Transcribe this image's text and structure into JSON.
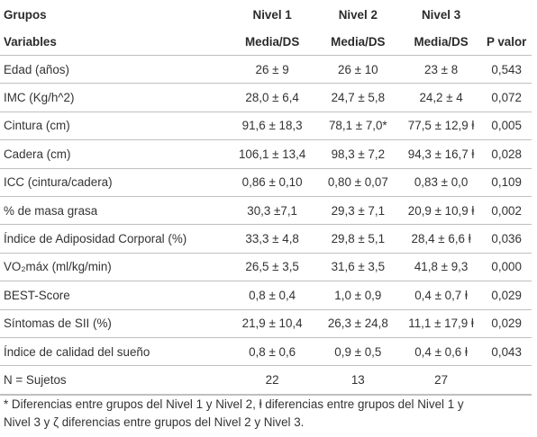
{
  "table": {
    "header_row1": {
      "label": "Grupos",
      "groups": [
        "Nivel 1",
        "Nivel 2",
        "Nivel 3"
      ]
    },
    "header_row2": {
      "label": "Variables",
      "cols": [
        "Media/DS",
        "Media/DS",
        "Media/DS",
        "P valor"
      ]
    },
    "rows": [
      {
        "variable": "Edad (años)",
        "n1": "26 ± 9",
        "n2": "26 ± 10",
        "n3": "23 ± 8",
        "p": "0,543"
      },
      {
        "variable": "IMC (Kg/h^2)",
        "n1": "28,0 ± 6,4",
        "n2": "24,7 ± 5,8",
        "n3": "24,2 ± 4",
        "p": "0,072"
      },
      {
        "variable": "Cintura (cm)",
        "n1": "91,6 ± 18,3",
        "n2": "78,1 ± 7,0*",
        "n3": "77,5 ± 12,9 ⱡ",
        "p": "0,005"
      },
      {
        "variable": "Cadera (cm)",
        "n1": "106,1 ± 13,4",
        "n2": "98,3 ± 7,2",
        "n3": "94,3 ± 16,7 ⱡ",
        "p": "0,028"
      },
      {
        "variable": "ICC (cintura/cadera)",
        "n1": "0,86 ± 0,10",
        "n2": "0,80 ± 0,07",
        "n3": "0,83 ± 0,0",
        "p": "0,109"
      },
      {
        "variable": "% de masa grasa",
        "n1": "30,3 ±7,1",
        "n2": "29,3 ± 7,1",
        "n3": "20,9 ± 10,9 ⱡ",
        "p": "0,002"
      },
      {
        "variable": "Índice de Adiposidad Corporal (%)",
        "n1": "33,3 ± 4,8",
        "n2": "29,8 ± 5,1",
        "n3": "28,4 ± 6,6 ⱡ",
        "p": "0,036"
      },
      {
        "variable": "VO₂máx (ml/kg/min)",
        "n1": "26,5 ± 3,5",
        "n2": "31,6 ± 3,5",
        "n3": "41,8 ± 9,3",
        "p": "0,000"
      },
      {
        "variable": "BEST-Score",
        "n1": "0,8 ± 0,4",
        "n2": "1,0 ± 0,9",
        "n3": "0,4 ± 0,7 ⱡ",
        "p": "0,029"
      },
      {
        "variable": "Síntomas de SII (%)",
        "n1": "21,9 ± 10,4",
        "n2": "26,3 ± 24,8",
        "n3": "11,1 ± 17,9 ⱡ",
        "p": "0,029"
      },
      {
        "variable": "Índice de calidad del sueño",
        "n1": "0,8 ± 0,6",
        "n2": "0,9 ± 0,5",
        "n3": "0,4 ± 0,6 ⱡ",
        "p": "0,043"
      },
      {
        "variable": "N = Sujetos",
        "n1": "22",
        "n2": "13",
        "n3": "27",
        "p": ""
      }
    ]
  },
  "footnote": "*  Diferencias entre grupos del Nivel 1 y Nivel 2, ⱡ diferencias entre grupos del Nivel 1 y\nNivel 3 y ζ diferencias entre grupos del Nivel 2 y Nivel 3."
}
